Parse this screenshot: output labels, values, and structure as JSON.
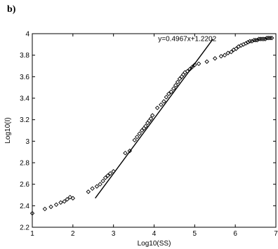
{
  "panel_label": "b)",
  "chart_data": {
    "type": "scatter",
    "title": "",
    "xlabel": "Log10(SS)",
    "ylabel": "Log10(I)",
    "xlim": [
      1,
      7
    ],
    "ylim": [
      2.2,
      4.0
    ],
    "xticks": [
      1,
      2,
      3,
      4,
      5,
      6,
      7
    ],
    "yticks": [
      2.2,
      2.4,
      2.6,
      2.8,
      3.0,
      3.2,
      3.4,
      3.6,
      3.8,
      4.0
    ],
    "xtick_labels": [
      "1",
      "2",
      "3",
      "4",
      "5",
      "6",
      "7"
    ],
    "ytick_labels": [
      "2.2",
      "2.4",
      "2.6",
      "2.8",
      "3",
      "3.2",
      "3.4",
      "3.6",
      "3.8",
      "4"
    ],
    "grid": false,
    "colors": {
      "marker": "#000000",
      "line": "#000000",
      "axis": "#000000"
    },
    "series": [
      {
        "kind": "scatter",
        "marker": "diamond-open",
        "x": [
          1.0,
          1.31,
          1.46,
          1.59,
          1.7,
          1.79,
          1.86,
          1.93,
          2.0,
          2.38,
          2.48,
          2.59,
          2.67,
          2.74,
          2.8,
          2.86,
          2.92,
          3.0,
          3.29,
          3.4,
          3.52,
          3.58,
          3.64,
          3.7,
          3.75,
          3.79,
          3.84,
          3.88,
          3.92,
          3.96,
          4.08,
          4.17,
          4.24,
          4.3,
          4.36,
          4.42,
          4.48,
          4.53,
          4.58,
          4.63,
          4.68,
          4.72,
          4.76,
          4.82,
          4.88,
          4.94,
          5.0,
          5.1,
          5.3,
          5.5,
          5.65,
          5.74,
          5.82,
          5.9,
          5.96,
          6.02,
          6.08,
          6.14,
          6.2,
          6.26,
          6.31,
          6.36,
          6.41,
          6.46,
          6.5,
          6.54,
          6.58,
          6.62,
          6.66,
          6.7,
          6.74,
          6.78,
          6.82,
          6.86,
          6.9
        ],
        "y": [
          2.33,
          2.37,
          2.39,
          2.41,
          2.43,
          2.44,
          2.46,
          2.48,
          2.47,
          2.53,
          2.56,
          2.58,
          2.6,
          2.63,
          2.66,
          2.68,
          2.7,
          2.72,
          2.89,
          2.91,
          3.01,
          3.04,
          3.07,
          3.1,
          3.12,
          3.14,
          3.17,
          3.19,
          3.21,
          3.24,
          3.31,
          3.34,
          3.37,
          3.41,
          3.44,
          3.46,
          3.49,
          3.52,
          3.55,
          3.58,
          3.6,
          3.62,
          3.64,
          3.65,
          3.67,
          3.69,
          3.71,
          3.72,
          3.74,
          3.77,
          3.79,
          3.8,
          3.82,
          3.83,
          3.85,
          3.86,
          3.88,
          3.89,
          3.9,
          3.91,
          3.92,
          3.93,
          3.93,
          3.94,
          3.94,
          3.94,
          3.95,
          3.95,
          3.95,
          3.95,
          3.95,
          3.96,
          3.96,
          3.96,
          3.96
        ]
      },
      {
        "kind": "line",
        "x": [
          2.55,
          5.45
        ],
        "y": [
          2.47,
          3.95
        ]
      }
    ],
    "annotations": [
      {
        "text": "y=0.4967x+1.2202",
        "x": 4.1,
        "y": 3.93
      }
    ]
  }
}
